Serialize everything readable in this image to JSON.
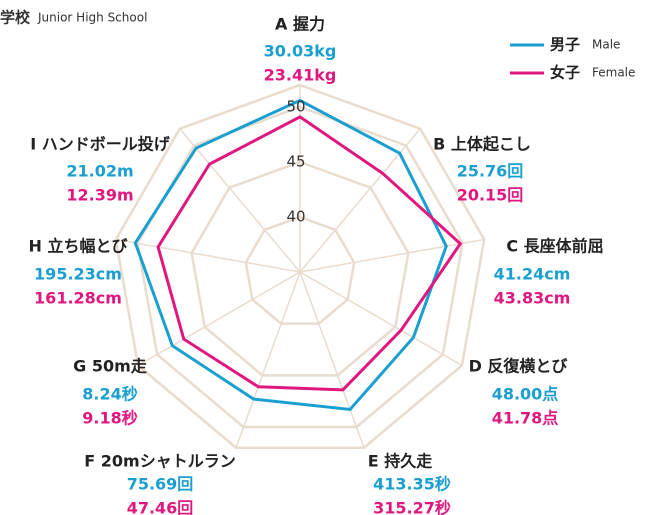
{
  "chart_data": {
    "type": "radar",
    "title": "学校",
    "subtitle": "Junior High School",
    "categories": [
      "A 握力",
      "B 上体起こし",
      "C 長座体前屈",
      "D 反復横とび",
      "E 持久走",
      "F 20mシャトルラン",
      "G 50m走",
      "H 立ち幅とび",
      "I ハンドボール投げ"
    ],
    "series": [
      {
        "name": "男子",
        "name_en": "Male",
        "color": "#1a9fd0",
        "values": [
          50.6,
          49.1,
          48.5,
          46.9,
          48.3,
          47.3,
          48.4,
          50.2,
          49.7
        ],
        "measurements": [
          "30.03kg",
          "25.76回",
          "41.24cm",
          "48.00点",
          "413.35秒",
          "75.69回",
          "8.24秒",
          "195.23cm",
          "21.02m"
        ]
      },
      {
        "name": "女子",
        "name_en": "Female",
        "color": "#e0177f",
        "values": [
          49.1,
          46.7,
          49.8,
          45.6,
          46.4,
          46.1,
          47.2,
          48.1,
          47.8
        ],
        "measurements": [
          "23.41kg",
          "20.15回",
          "43.83cm",
          "41.78点",
          "315.27秒",
          "47.46回",
          "9.18秒",
          "161.28cm",
          "12.39m"
        ]
      }
    ],
    "rlim": [
      35,
      52
    ],
    "rticks": [
      40,
      45,
      50
    ],
    "grid_color": "#e8dccf",
    "legend": "top-right"
  }
}
